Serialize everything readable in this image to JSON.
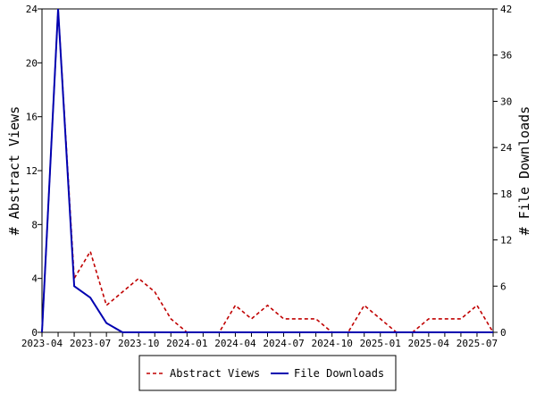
{
  "chart_data": {
    "type": "line",
    "x": [
      "2023-04",
      "2023-05",
      "2023-06",
      "2023-07",
      "2023-08",
      "2023-09",
      "2023-10",
      "2023-11",
      "2023-12",
      "2024-01",
      "2024-02",
      "2024-03",
      "2024-04",
      "2024-05",
      "2024-06",
      "2024-07",
      "2024-08",
      "2024-09",
      "2024-10",
      "2024-11",
      "2024-12",
      "2025-01",
      "2025-02",
      "2025-03",
      "2025-04",
      "2025-05",
      "2025-06",
      "2025-07",
      "2025-08"
    ],
    "x_tick_labels": [
      "2023-04",
      "2023-07",
      "2023-10",
      "2024-01",
      "2024-04",
      "2024-07",
      "2024-10",
      "2025-01",
      "2025-04",
      "2025-07"
    ],
    "series": [
      {
        "name": "Abstract Views",
        "axis": "left",
        "color": "#c00000",
        "dash": "dashed",
        "values": [
          0,
          24,
          4,
          6,
          2,
          3,
          4,
          3,
          1,
          0,
          0,
          0,
          2,
          1,
          2,
          1,
          1,
          1,
          0,
          0,
          2,
          1,
          0,
          0,
          1,
          1,
          1,
          2,
          0
        ]
      },
      {
        "name": "File Downloads",
        "axis": "right",
        "color": "#0000b0",
        "dash": "solid",
        "values": [
          0,
          42,
          6,
          4.5,
          1.2,
          0,
          0,
          0,
          0,
          0,
          0,
          0,
          0,
          0,
          0,
          0,
          0,
          0,
          0,
          0,
          0,
          0,
          0,
          0,
          0,
          0,
          0,
          0,
          0
        ]
      }
    ],
    "y_left": {
      "label": "# Abstract Views",
      "range": [
        0,
        24
      ],
      "ticks": [
        "0",
        "4",
        "8",
        "12",
        "16",
        "20",
        "24"
      ]
    },
    "y_right": {
      "label": "# File Downloads",
      "range": [
        0,
        42
      ],
      "ticks": [
        "0",
        "6",
        "12",
        "18",
        "24",
        "30",
        "36",
        "42"
      ]
    },
    "legend": {
      "position": "bottom",
      "entries": [
        "Abstract Views",
        "File Downloads"
      ]
    },
    "grid": false
  }
}
